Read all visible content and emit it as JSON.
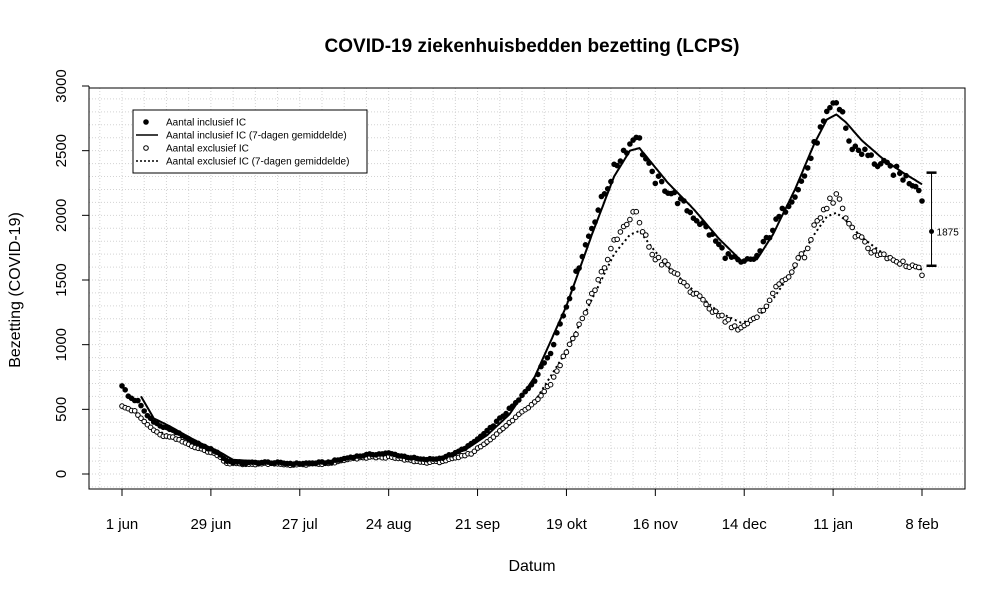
{
  "chart_data": {
    "type": "scatter",
    "title": "COVID-19 ziekenhuisbedden bezetting (LCPS)",
    "xlabel": "Datum",
    "ylabel": "Bezetting (COVID-19)",
    "x_start": "1 jun",
    "xlim_days": [
      -7,
      258
    ],
    "ylim": [
      -100,
      3050
    ],
    "x_ticks": [
      {
        "day": 0,
        "label": "1 jun"
      },
      {
        "day": 28,
        "label": "29 jun"
      },
      {
        "day": 56,
        "label": "27 jul"
      },
      {
        "day": 84,
        "label": "24 aug"
      },
      {
        "day": 112,
        "label": "21 sep"
      },
      {
        "day": 140,
        "label": "19 okt"
      },
      {
        "day": 168,
        "label": "16 nov"
      },
      {
        "day": 196,
        "label": "14 dec"
      },
      {
        "day": 224,
        "label": "11 jan"
      },
      {
        "day": 252,
        "label": "8 feb"
      }
    ],
    "y_ticks": [
      0,
      500,
      1000,
      1500,
      2000,
      2500,
      3000
    ],
    "grid": true,
    "legend_position": "top-left",
    "legend": [
      {
        "label": "Aantal inclusief IC",
        "symbol": "filled-circle"
      },
      {
        "label": "Aantal inclusief IC (7-dagen gemiddelde)",
        "symbol": "solid-line"
      },
      {
        "label": "Aantal exclusief IC",
        "symbol": "open-circle"
      },
      {
        "label": "Aantal exclusief IC (7-dagen gemiddelde)",
        "symbol": "dotted-line"
      }
    ],
    "series_keypoints": {
      "inclusief_ic": [
        [
          0,
          690
        ],
        [
          2,
          600
        ],
        [
          5,
          560
        ],
        [
          8,
          450
        ],
        [
          12,
          370
        ],
        [
          16,
          340
        ],
        [
          20,
          280
        ],
        [
          25,
          220
        ],
        [
          30,
          170
        ],
        [
          33,
          100
        ],
        [
          38,
          85
        ],
        [
          45,
          90
        ],
        [
          55,
          80
        ],
        [
          65,
          90
        ],
        [
          72,
          130
        ],
        [
          78,
          150
        ],
        [
          84,
          160
        ],
        [
          88,
          140
        ],
        [
          95,
          110
        ],
        [
          100,
          120
        ],
        [
          105,
          160
        ],
        [
          110,
          230
        ],
        [
          115,
          330
        ],
        [
          120,
          450
        ],
        [
          125,
          570
        ],
        [
          130,
          730
        ],
        [
          135,
          950
        ],
        [
          140,
          1300
        ],
        [
          145,
          1700
        ],
        [
          150,
          2050
        ],
        [
          155,
          2350
        ],
        [
          158,
          2500
        ],
        [
          160,
          2550
        ],
        [
          162,
          2640
        ],
        [
          164,
          2500
        ],
        [
          167,
          2300
        ],
        [
          172,
          2200
        ],
        [
          178,
          2050
        ],
        [
          184,
          1900
        ],
        [
          190,
          1700
        ],
        [
          195,
          1620
        ],
        [
          200,
          1680
        ],
        [
          205,
          1900
        ],
        [
          210,
          2100
        ],
        [
          215,
          2300
        ],
        [
          219,
          2600
        ],
        [
          223,
          2800
        ],
        [
          225,
          2860
        ],
        [
          227,
          2800
        ],
        [
          229,
          2550
        ],
        [
          233,
          2500
        ],
        [
          238,
          2400
        ],
        [
          243,
          2350
        ],
        [
          248,
          2270
        ],
        [
          251,
          2230
        ],
        [
          252,
          2110
        ]
      ],
      "inclusief_ic_7d": [
        [
          6,
          600
        ],
        [
          10,
          430
        ],
        [
          15,
          370
        ],
        [
          20,
          300
        ],
        [
          25,
          235
        ],
        [
          30,
          180
        ],
        [
          35,
          110
        ],
        [
          45,
          95
        ],
        [
          55,
          85
        ],
        [
          65,
          90
        ],
        [
          72,
          125
        ],
        [
          80,
          150
        ],
        [
          88,
          140
        ],
        [
          95,
          120
        ],
        [
          100,
          125
        ],
        [
          108,
          185
        ],
        [
          115,
          300
        ],
        [
          122,
          460
        ],
        [
          130,
          750
        ],
        [
          140,
          1300
        ],
        [
          148,
          1850
        ],
        [
          155,
          2300
        ],
        [
          160,
          2500
        ],
        [
          163,
          2520
        ],
        [
          167,
          2400
        ],
        [
          172,
          2250
        ],
        [
          180,
          2050
        ],
        [
          188,
          1820
        ],
        [
          195,
          1650
        ],
        [
          200,
          1660
        ],
        [
          205,
          1850
        ],
        [
          212,
          2200
        ],
        [
          218,
          2550
        ],
        [
          222,
          2740
        ],
        [
          225,
          2780
        ],
        [
          228,
          2720
        ],
        [
          233,
          2580
        ],
        [
          240,
          2430
        ],
        [
          246,
          2330
        ],
        [
          252,
          2240
        ]
      ],
      "exclusief_ic": [
        [
          0,
          535
        ],
        [
          4,
          480
        ],
        [
          8,
          380
        ],
        [
          12,
          300
        ],
        [
          16,
          280
        ],
        [
          20,
          240
        ],
        [
          25,
          190
        ],
        [
          30,
          150
        ],
        [
          33,
          85
        ],
        [
          38,
          75
        ],
        [
          45,
          80
        ],
        [
          55,
          70
        ],
        [
          65,
          80
        ],
        [
          72,
          115
        ],
        [
          78,
          130
        ],
        [
          84,
          130
        ],
        [
          88,
          115
        ],
        [
          95,
          90
        ],
        [
          100,
          95
        ],
        [
          105,
          120
        ],
        [
          110,
          160
        ],
        [
          115,
          250
        ],
        [
          120,
          350
        ],
        [
          125,
          460
        ],
        [
          130,
          560
        ],
        [
          135,
          700
        ],
        [
          140,
          950
        ],
        [
          145,
          1200
        ],
        [
          150,
          1500
        ],
        [
          155,
          1780
        ],
        [
          158,
          1900
        ],
        [
          160,
          1950
        ],
        [
          162,
          2040
        ],
        [
          164,
          1880
        ],
        [
          167,
          1700
        ],
        [
          172,
          1600
        ],
        [
          178,
          1450
        ],
        [
          184,
          1300
        ],
        [
          190,
          1200
        ],
        [
          193,
          1130
        ],
        [
          196,
          1150
        ],
        [
          200,
          1200
        ],
        [
          205,
          1400
        ],
        [
          210,
          1550
        ],
        [
          215,
          1700
        ],
        [
          219,
          1950
        ],
        [
          223,
          2100
        ],
        [
          225,
          2160
        ],
        [
          227,
          2050
        ],
        [
          229,
          1900
        ],
        [
          233,
          1800
        ],
        [
          238,
          1700
        ],
        [
          243,
          1650
        ],
        [
          248,
          1620
        ],
        [
          251,
          1600
        ],
        [
          252,
          1520
        ]
      ],
      "exclusief_ic_7d": [
        [
          6,
          430
        ],
        [
          10,
          340
        ],
        [
          15,
          300
        ],
        [
          20,
          250
        ],
        [
          25,
          200
        ],
        [
          30,
          160
        ],
        [
          35,
          95
        ],
        [
          45,
          85
        ],
        [
          55,
          78
        ],
        [
          65,
          80
        ],
        [
          72,
          110
        ],
        [
          80,
          130
        ],
        [
          88,
          120
        ],
        [
          95,
          95
        ],
        [
          100,
          100
        ],
        [
          108,
          140
        ],
        [
          115,
          230
        ],
        [
          122,
          380
        ],
        [
          130,
          560
        ],
        [
          140,
          950
        ],
        [
          148,
          1350
        ],
        [
          155,
          1700
        ],
        [
          160,
          1850
        ],
        [
          163,
          1880
        ],
        [
          167,
          1750
        ],
        [
          172,
          1600
        ],
        [
          180,
          1420
        ],
        [
          188,
          1250
        ],
        [
          195,
          1170
        ],
        [
          200,
          1200
        ],
        [
          205,
          1350
        ],
        [
          212,
          1600
        ],
        [
          218,
          1850
        ],
        [
          222,
          1990
        ],
        [
          225,
          2020
        ],
        [
          228,
          1960
        ],
        [
          233,
          1830
        ],
        [
          240,
          1700
        ],
        [
          246,
          1630
        ],
        [
          252,
          1580
        ]
      ]
    },
    "annotation": {
      "day": 255,
      "value": 1875,
      "low": 1610,
      "high": 2330,
      "label": "1875"
    }
  }
}
